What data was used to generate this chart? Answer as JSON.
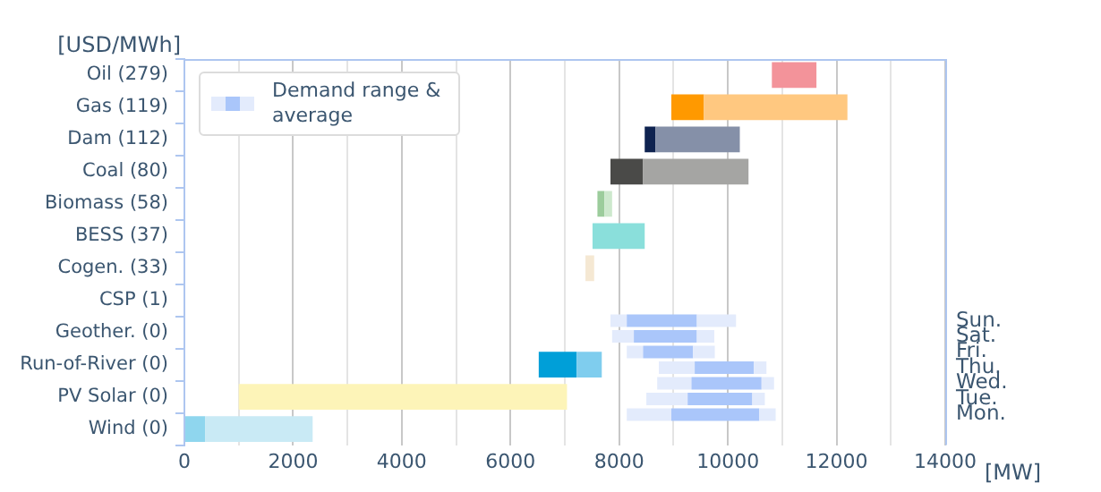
{
  "chart_data": [
    {
      "type": "bar",
      "orientation": "horizontal",
      "ylabel": "[USD/MWh]",
      "xlabel": "[MW]",
      "categories": [
        "Oil (279)",
        "Gas (119)",
        "Dam (112)",
        "Coal (80)",
        "Biomass (58)",
        "BESS (37)",
        "Cogen. (33)",
        "CSP (1)",
        "Geother. (0)",
        "Run-of-River (0)",
        "PV Solar (0)",
        "Wind (0)"
      ],
      "series": [
        {
          "base": [
            null,
            8960,
            8470,
            7840,
            7600,
            null,
            null,
            null,
            null,
            6520,
            null,
            0
          ],
          "values": [
            null,
            600,
            200,
            600,
            130,
            null,
            null,
            null,
            null,
            700,
            null,
            380
          ],
          "colors": [
            "#f3939a",
            "#ff9900",
            "#0f2350",
            "#4a4a48",
            "#9ccc9c",
            "#8adfdb",
            "#f3e6d0",
            "#cccccc",
            "#cccccc",
            "#009fd8",
            "#fdf4b8",
            "#8fd6ee"
          ]
        },
        {
          "base": [
            10810,
            9560,
            8670,
            8440,
            7730,
            7510,
            7380,
            null,
            null,
            7220,
            1000,
            380
          ],
          "values": [
            820,
            2640,
            1550,
            1940,
            140,
            960,
            160,
            null,
            null,
            460,
            6040,
            1980
          ],
          "colors": [
            "#f3939a",
            "#ffc880",
            "#8590a8",
            "#a5a5a3",
            "#cde8cd",
            "#8adfdb",
            "#f5e8d3",
            "#cccccc",
            "#cccccc",
            "#7fcdee",
            "#fdf4b8",
            "#c9eaf5"
          ]
        }
      ],
      "xlim": [
        0,
        14000
      ],
      "xticks": [
        0,
        {
          "value": 1000,
          "label": null
        },
        2000,
        {
          "value": 3000,
          "label": null
        },
        4000,
        {
          "value": 5000,
          "label": null
        },
        6000,
        {
          "value": 7000,
          "label": null
        },
        8000,
        {
          "value": 9000,
          "label": null
        },
        10000,
        {
          "value": 11000,
          "label": null
        },
        12000,
        {
          "value": 13000,
          "label": null
        },
        14000
      ],
      "grid": "x"
    },
    {
      "type": "bar",
      "orientation": "horizontal",
      "legend": "top left",
      "tick_labels": "y",
      "categories": [
        "Sun.",
        "Sat.",
        "Fri.",
        "Thu.",
        "Wed.",
        "Tue.",
        "Mon."
      ],
      "series": [
        {
          "name": "Demand range & average",
          "color": "#e3ebfc",
          "base": [
            7840,
            7870,
            8140,
            8730,
            8700,
            8500,
            8140
          ],
          "values": [
            300,
            400,
            300,
            660,
            630,
            760,
            820
          ]
        },
        {
          "color": "#aac6fa",
          "base": [
            8140,
            8270,
            8440,
            9390,
            9330,
            9260,
            8960
          ],
          "values": [
            1290,
            1160,
            920,
            1090,
            1290,
            1190,
            1620
          ]
        },
        {
          "color": "#e3ebfc",
          "base": [
            9430,
            9430,
            9360,
            10480,
            10620,
            10450,
            10580
          ],
          "values": [
            720,
            320,
            400,
            230,
            230,
            230,
            300
          ]
        }
      ],
      "xlim": [
        0,
        14000
      ]
    }
  ]
}
